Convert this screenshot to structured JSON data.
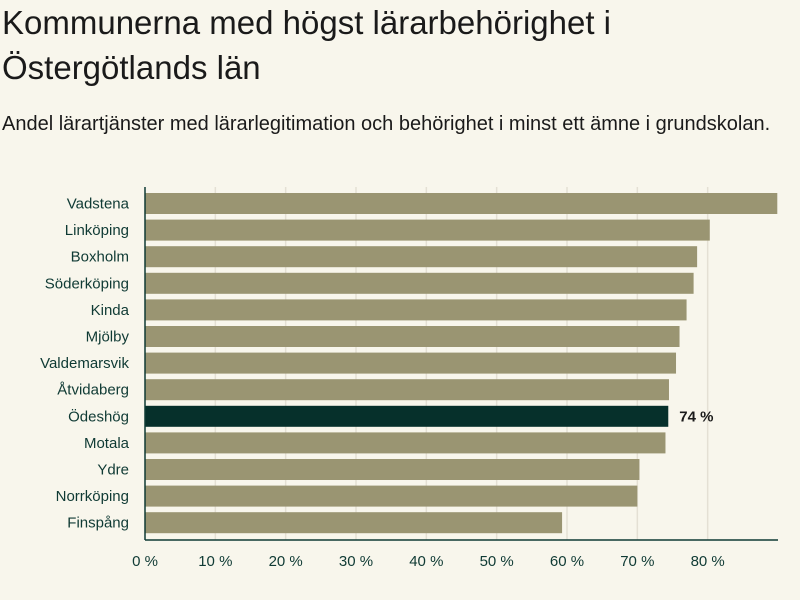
{
  "chart_data": {
    "type": "bar",
    "orientation": "horizontal",
    "title": "Kommunerna med högst lärarbehörighet i Östergötlands län",
    "subtitle": "Andel lärartjänster med lärarlegitimation och behörighet i minst ett ämne i grundskolan.",
    "categories": [
      "Vadstena",
      "Linköping",
      "Boxholm",
      "Söderköping",
      "Kinda",
      "Mjölby",
      "Valdemarsvik",
      "Åtvidaberg",
      "Ödeshög",
      "Motala",
      "Ydre",
      "Norrköping",
      "Finspång"
    ],
    "values": [
      89.9,
      80.3,
      78.5,
      78.0,
      77.0,
      76.0,
      75.5,
      74.5,
      74.4,
      74.0,
      70.3,
      70.0,
      59.3
    ],
    "highlight": "Ödeshög",
    "highlight_label": "74 %",
    "xlim": [
      0,
      90
    ],
    "xticks": [
      0,
      10,
      20,
      30,
      40,
      50,
      60,
      70,
      80
    ],
    "xtick_labels": [
      "0 %",
      "10 %",
      "20 %",
      "30 %",
      "40 %",
      "50 %",
      "60 %",
      "70 %",
      "80 %"
    ],
    "grid": true,
    "colors": {
      "bar": "#9a9572",
      "highlight": "#06302b",
      "grid": "#e4e0d4",
      "axis": "#0f3a34",
      "background": "#f8f6ec"
    }
  }
}
